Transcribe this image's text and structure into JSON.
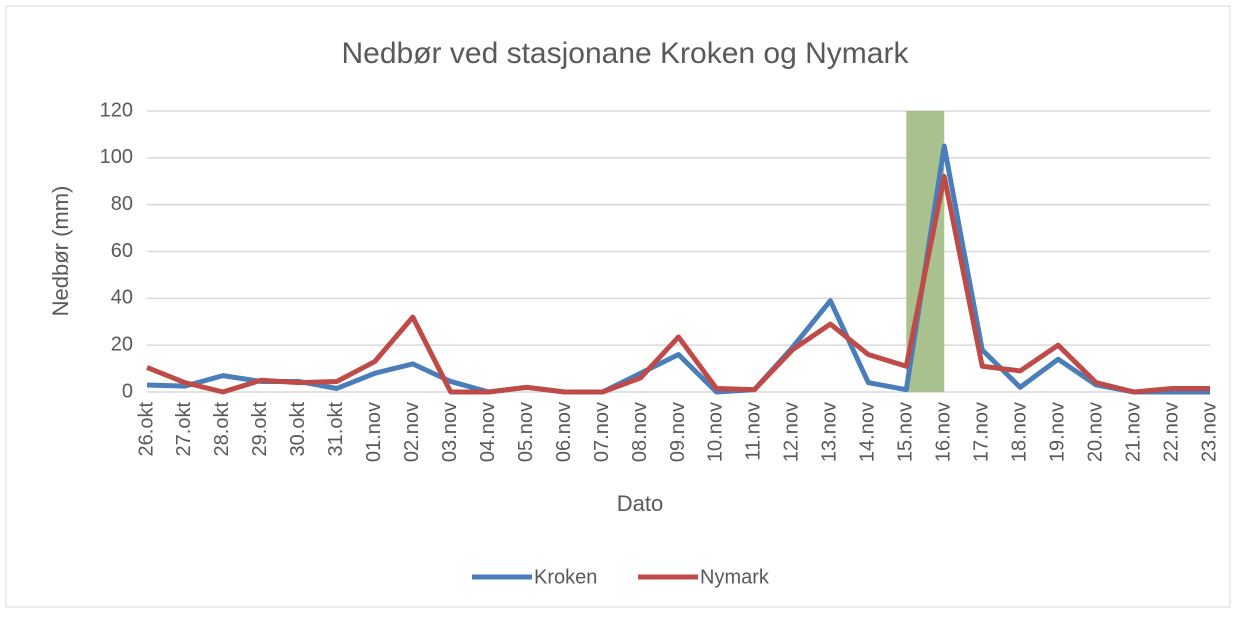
{
  "chart_data": {
    "type": "line",
    "title": "Nedbør ved stasjonane Kroken og Nymark",
    "x_label": "Dato",
    "y_label": "Nedbør (mm)",
    "categories": [
      "26.okt",
      "27.okt",
      "28.okt",
      "29.okt",
      "30.okt",
      "31.okt",
      "01.nov",
      "02.nov",
      "03.nov",
      "04.nov",
      "05.nov",
      "06.nov",
      "07.nov",
      "08.nov",
      "09.nov",
      "10.nov",
      "11.nov",
      "12.nov",
      "13.nov",
      "14.nov",
      "15.nov",
      "16.nov",
      "17.nov",
      "18.nov",
      "19.nov",
      "20.nov",
      "21.nov",
      "22.nov",
      "23.nov"
    ],
    "series": [
      {
        "name": "Kroken",
        "color": "#4a7ebb",
        "values": [
          3,
          2.5,
          7,
          4.5,
          4.5,
          1.5,
          8,
          12,
          4.5,
          0,
          2,
          0,
          0,
          8,
          16,
          0,
          1,
          19,
          39,
          4,
          1,
          105,
          18,
          2,
          14,
          3,
          0,
          0,
          0
        ]
      },
      {
        "name": "Nymark",
        "color": "#be4b48",
        "values": [
          10.5,
          4,
          0,
          5,
          4,
          4.5,
          13,
          32,
          0,
          0,
          2,
          0,
          0,
          6,
          23.5,
          1.5,
          1,
          18,
          29,
          16,
          11,
          92,
          11,
          9,
          20,
          4,
          0,
          1.5,
          1.5
        ]
      }
    ],
    "highlight": {
      "start": "15.nov",
      "end": "16.nov",
      "color": "#a9c08f"
    },
    "ylim": [
      0,
      120
    ],
    "yticks": [
      0,
      20,
      40,
      60,
      80,
      100,
      120
    ],
    "grid": true,
    "legend": "bottom"
  }
}
